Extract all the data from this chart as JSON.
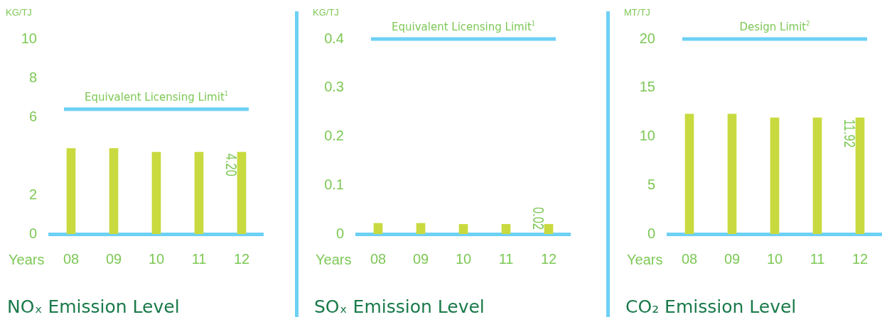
{
  "chart_data": [
    {
      "type": "bar",
      "title": "NOₓ Emission Level",
      "ylabel": "KG/TJ",
      "xlabel": "Years",
      "categories": [
        "08",
        "09",
        "10",
        "11",
        "12"
      ],
      "color": "#c8da3f",
      "values": [
        4.39,
        4.39,
        4.2,
        4.2,
        4.2
      ],
      "value_labels": [
        null,
        null,
        null,
        null,
        "4.20"
      ],
      "ylim": [
        0,
        10
      ],
      "yticks": [
        0,
        2,
        6,
        8,
        10
      ],
      "grid": false,
      "ref_lines": [
        {
          "axis": "y",
          "value": 6.4,
          "label": "Equivalent Licensing Limit$^{1}$",
          "color": "#6dd0f5"
        }
      ]
    },
    {
      "type": "bar",
      "title": "SOₓ Emission Level",
      "ylabel": "KG/TJ",
      "xlabel": "Years",
      "categories": [
        "08",
        "09",
        "10",
        "11",
        "12"
      ],
      "color": "#c8da3f",
      "values": [
        0.022,
        0.022,
        0.02,
        0.02,
        0.02
      ],
      "value_labels": [
        null,
        null,
        null,
        null,
        "0.02"
      ],
      "ylim": [
        0,
        0.4
      ],
      "yticks": [
        0,
        0.1,
        0.2,
        0.3,
        0.4
      ],
      "grid": false,
      "ref_lines": [
        {
          "axis": "y",
          "value": 0.4,
          "label": "Equivalent Licensing Limit$^{1}$",
          "color": "#6dd0f5"
        }
      ]
    },
    {
      "type": "bar",
      "title": "CO₂ Emission Level",
      "ylabel": "MT/TJ",
      "xlabel": "Years",
      "categories": [
        "08",
        "09",
        "10",
        "11",
        "12"
      ],
      "color": "#c8da3f",
      "values": [
        12.3,
        12.3,
        11.92,
        11.92,
        11.92
      ],
      "value_labels": [
        null,
        null,
        null,
        null,
        "11.92"
      ],
      "ylim": [
        0,
        20
      ],
      "yticks": [
        0,
        5,
        10,
        15,
        20
      ],
      "grid": false,
      "ref_lines": [
        {
          "axis": "y",
          "value": 20,
          "label": "Design Limit$^{2}$",
          "color": "#6dd0f5"
        }
      ]
    }
  ]
}
